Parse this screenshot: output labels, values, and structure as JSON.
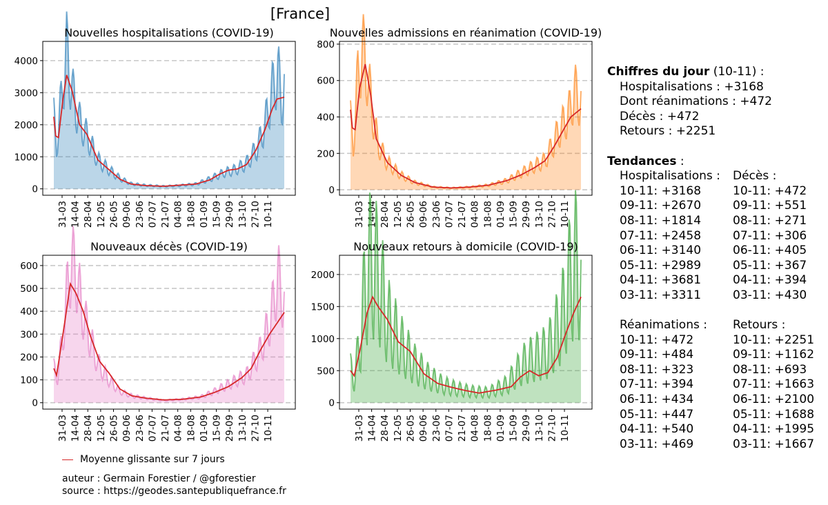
{
  "title": "[France]",
  "legend": {
    "label": "Moyenne glissante sur 7 jours",
    "color": "#d62728"
  },
  "footer": {
    "author": "auteur : Germain Forestier / @gforestier",
    "source": "source : https://geodes.santepubliquefrance.fr"
  },
  "chart_data": [
    {
      "type": "area",
      "title": "Nouvelles hospitalisations (COVID-19)",
      "color": "#1f77b4",
      "ylim": [
        -200,
        4600
      ],
      "yticks": [
        0,
        1000,
        2000,
        3000,
        4000
      ],
      "xtick_labels": [
        "31-03",
        "14-04",
        "28-04",
        "12-05",
        "26-05",
        "09-06",
        "23-06",
        "07-07",
        "21-07",
        "04-08",
        "18-08",
        "01-09",
        "15-09",
        "29-09",
        "13-10",
        "27-10",
        "10-11"
      ],
      "daily_keypoints": [
        [
          0,
          2200
        ],
        [
          3,
          1300
        ],
        [
          10,
          3300
        ],
        [
          14,
          4280
        ],
        [
          21,
          2900
        ],
        [
          28,
          2100
        ],
        [
          36,
          1650
        ],
        [
          48,
          900
        ],
        [
          60,
          600
        ],
        [
          72,
          330
        ],
        [
          84,
          160
        ],
        [
          100,
          110
        ],
        [
          120,
          80
        ],
        [
          135,
          100
        ],
        [
          155,
          150
        ],
        [
          170,
          310
        ],
        [
          185,
          500
        ],
        [
          198,
          600
        ],
        [
          210,
          800
        ],
        [
          222,
          1300
        ],
        [
          230,
          2000
        ],
        [
          237,
          2950
        ],
        [
          244,
          3680
        ],
        [
          248,
          2700
        ],
        [
          251,
          3170
        ]
      ],
      "daily_amplitude": 0.3,
      "moving_average_keypoints": [
        [
          0,
          2250
        ],
        [
          2,
          1650
        ],
        [
          5,
          1600
        ],
        [
          10,
          2800
        ],
        [
          14,
          3550
        ],
        [
          20,
          3050
        ],
        [
          28,
          2000
        ],
        [
          36,
          1700
        ],
        [
          48,
          900
        ],
        [
          60,
          600
        ],
        [
          72,
          300
        ],
        [
          84,
          150
        ],
        [
          100,
          100
        ],
        [
          120,
          80
        ],
        [
          135,
          110
        ],
        [
          155,
          150
        ],
        [
          170,
          280
        ],
        [
          180,
          450
        ],
        [
          190,
          580
        ],
        [
          200,
          620
        ],
        [
          210,
          760
        ],
        [
          220,
          1200
        ],
        [
          230,
          1850
        ],
        [
          238,
          2500
        ],
        [
          243,
          2800
        ],
        [
          251,
          2860
        ]
      ]
    },
    {
      "type": "area",
      "title": "Nouvelles admissions en réanimation (COVID-19)",
      "color": "#ff7f0e",
      "ylim": [
        -30,
        815
      ],
      "yticks": [
        0,
        200,
        400,
        600,
        800
      ],
      "xtick_labels": [
        "31-03",
        "14-04",
        "28-04",
        "12-05",
        "26-05",
        "09-06",
        "23-06",
        "07-07",
        "21-07",
        "04-08",
        "18-08",
        "01-09",
        "15-09",
        "29-09",
        "13-10",
        "27-10",
        "10-11"
      ],
      "daily_keypoints": [
        [
          0,
          380
        ],
        [
          3,
          240
        ],
        [
          8,
          620
        ],
        [
          13,
          770
        ],
        [
          18,
          650
        ],
        [
          24,
          420
        ],
        [
          30,
          250
        ],
        [
          40,
          150
        ],
        [
          55,
          80
        ],
        [
          70,
          40
        ],
        [
          90,
          15
        ],
        [
          110,
          10
        ],
        [
          130,
          15
        ],
        [
          150,
          25
        ],
        [
          170,
          50
        ],
        [
          185,
          90
        ],
        [
          200,
          130
        ],
        [
          212,
          160
        ],
        [
          225,
          300
        ],
        [
          238,
          420
        ],
        [
          244,
          540
        ],
        [
          251,
          480
        ]
      ],
      "daily_amplitude": 0.3,
      "moving_average_keypoints": [
        [
          0,
          440
        ],
        [
          2,
          340
        ],
        [
          5,
          330
        ],
        [
          10,
          560
        ],
        [
          16,
          690
        ],
        [
          22,
          520
        ],
        [
          28,
          280
        ],
        [
          40,
          150
        ],
        [
          55,
          80
        ],
        [
          70,
          40
        ],
        [
          90,
          15
        ],
        [
          110,
          10
        ],
        [
          130,
          15
        ],
        [
          150,
          25
        ],
        [
          170,
          50
        ],
        [
          185,
          80
        ],
        [
          200,
          120
        ],
        [
          212,
          160
        ],
        [
          222,
          240
        ],
        [
          232,
          330
        ],
        [
          240,
          400
        ],
        [
          251,
          445
        ]
      ]
    },
    {
      "type": "area",
      "title": "Nouveaux décès (COVID-19)",
      "color": "#e377c2",
      "ylim": [
        -28,
        645
      ],
      "yticks": [
        0,
        100,
        200,
        300,
        400,
        500,
        600
      ],
      "xtick_labels": [
        "31-03",
        "14-04",
        "28-04",
        "12-05",
        "26-05",
        "09-06",
        "23-06",
        "07-07",
        "21-07",
        "04-08",
        "18-08",
        "01-09",
        "15-09",
        "29-09",
        "13-10",
        "27-10",
        "10-11"
      ],
      "daily_keypoints": [
        [
          0,
          150
        ],
        [
          4,
          110
        ],
        [
          10,
          300
        ],
        [
          15,
          500
        ],
        [
          19,
          610
        ],
        [
          24,
          580
        ],
        [
          30,
          420
        ],
        [
          38,
          300
        ],
        [
          48,
          170
        ],
        [
          60,
          100
        ],
        [
          72,
          50
        ],
        [
          85,
          30
        ],
        [
          100,
          20
        ],
        [
          120,
          10
        ],
        [
          140,
          15
        ],
        [
          160,
          25
        ],
        [
          175,
          50
        ],
        [
          190,
          80
        ],
        [
          210,
          120
        ],
        [
          224,
          220
        ],
        [
          236,
          360
        ],
        [
          244,
          550
        ],
        [
          251,
          430
        ]
      ],
      "daily_amplitude": 0.3,
      "moving_average_keypoints": [
        [
          0,
          150
        ],
        [
          3,
          120
        ],
        [
          10,
          300
        ],
        [
          18,
          520
        ],
        [
          24,
          480
        ],
        [
          32,
          400
        ],
        [
          40,
          290
        ],
        [
          50,
          180
        ],
        [
          60,
          130
        ],
        [
          72,
          60
        ],
        [
          85,
          30
        ],
        [
          100,
          20
        ],
        [
          120,
          12
        ],
        [
          140,
          15
        ],
        [
          160,
          25
        ],
        [
          175,
          45
        ],
        [
          190,
          70
        ],
        [
          205,
          110
        ],
        [
          215,
          150
        ],
        [
          225,
          230
        ],
        [
          235,
          300
        ],
        [
          251,
          395
        ]
      ]
    },
    {
      "type": "area",
      "title": "Nouveaux retours à domicile (COVID-19)",
      "color": "#2ca02c",
      "ylim": [
        -100,
        2300
      ],
      "yticks": [
        0,
        500,
        1000,
        1500,
        2000
      ],
      "xtick_labels": [
        "31-03",
        "14-04",
        "28-04",
        "12-05",
        "26-05",
        "09-06",
        "23-06",
        "07-07",
        "21-07",
        "04-08",
        "18-08",
        "01-09",
        "15-09",
        "29-09",
        "13-10",
        "27-10",
        "10-11"
      ],
      "daily_keypoints": [
        [
          0,
          500
        ],
        [
          4,
          380
        ],
        [
          10,
          900
        ],
        [
          16,
          1800
        ],
        [
          22,
          2200
        ],
        [
          30,
          2000
        ],
        [
          40,
          1300
        ],
        [
          55,
          900
        ],
        [
          70,
          600
        ],
        [
          85,
          400
        ],
        [
          100,
          280
        ],
        [
          115,
          220
        ],
        [
          130,
          180
        ],
        [
          150,
          160
        ],
        [
          170,
          280
        ],
        [
          188,
          600
        ],
        [
          200,
          700
        ],
        [
          215,
          800
        ],
        [
          230,
          1300
        ],
        [
          240,
          2000
        ],
        [
          248,
          2250
        ],
        [
          251,
          1800
        ]
      ],
      "daily_amplitude": 0.55,
      "moving_average_keypoints": [
        [
          0,
          500
        ],
        [
          4,
          420
        ],
        [
          10,
          800
        ],
        [
          18,
          1400
        ],
        [
          24,
          1650
        ],
        [
          30,
          1500
        ],
        [
          40,
          1300
        ],
        [
          52,
          950
        ],
        [
          65,
          800
        ],
        [
          80,
          450
        ],
        [
          95,
          300
        ],
        [
          110,
          240
        ],
        [
          125,
          190
        ],
        [
          140,
          150
        ],
        [
          160,
          200
        ],
        [
          175,
          250
        ],
        [
          185,
          400
        ],
        [
          195,
          500
        ],
        [
          205,
          420
        ],
        [
          215,
          470
        ],
        [
          225,
          700
        ],
        [
          235,
          1100
        ],
        [
          243,
          1400
        ],
        [
          251,
          1650
        ]
      ]
    }
  ],
  "sidebar": {
    "today_label": "Chiffres du jour",
    "today_date": " (10-11) :",
    "today_lines": [
      "Hospitalisations : +3168",
      "Dont réanimations : +472",
      "Décès : +472",
      "Retours : +2251"
    ],
    "trends_label": "Tendances",
    "trends_suffix": " :",
    "col1_header": "Hospitalisations :",
    "col2_header": "Décès :",
    "col1_values": [
      "10-11: +3168",
      "09-11: +2670",
      "08-11: +1814",
      "07-11: +2458",
      "06-11: +3140",
      "05-11: +2989",
      "04-11: +3681",
      "03-11: +3311"
    ],
    "col2_values": [
      "10-11: +472",
      "09-11: +551",
      "08-11: +271",
      "07-11: +306",
      "06-11: +405",
      "05-11: +367",
      "04-11: +394",
      "03-11: +430"
    ],
    "col3_header": "Réanimations :",
    "col4_header": "Retours :",
    "col3_values": [
      "10-11: +472",
      "09-11: +484",
      "08-11: +323",
      "07-11: +394",
      "06-11: +434",
      "05-11: +447",
      "04-11: +540",
      "03-11: +469"
    ],
    "col4_values": [
      "10-11: +2251",
      "09-11: +1162",
      "08-11: +693",
      "07-11: +1663",
      "06-11: +2100",
      "05-11: +1688",
      "04-11: +1995",
      "03-11: +1667"
    ]
  }
}
